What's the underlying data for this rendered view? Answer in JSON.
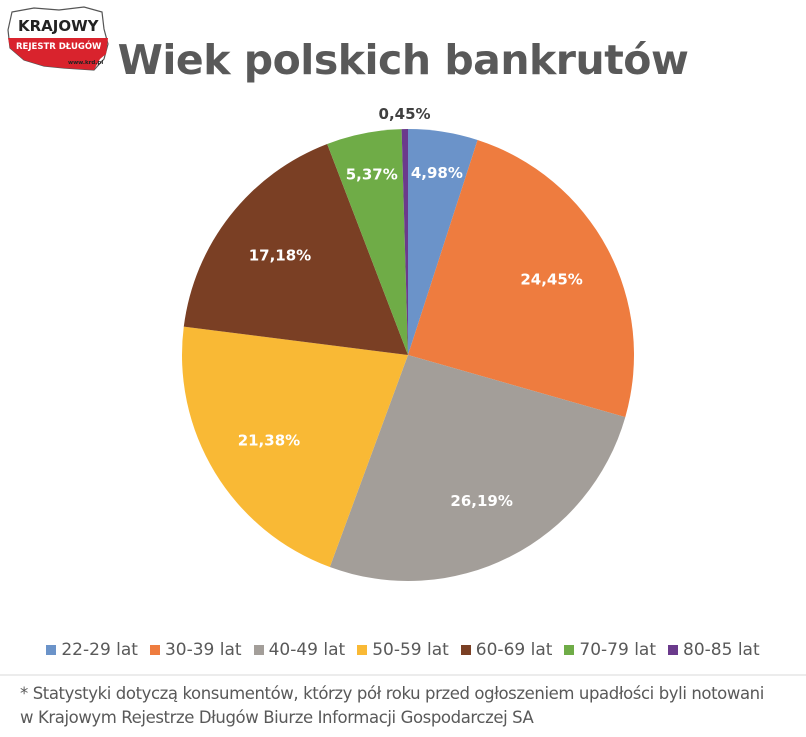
{
  "logo": {
    "line1": "KRAJOWY",
    "line2": "REJESTR DŁUGÓW",
    "url": "www.krd.pl",
    "brand_color": "#d9232d"
  },
  "title": "Wiek polskich bankrutów",
  "legend": [
    {
      "label": "22-29 lat",
      "color": "#6b93c9"
    },
    {
      "label": "30-39 lat",
      "color": "#ee7c3f"
    },
    {
      "label": "40-49 lat",
      "color": "#a39e99"
    },
    {
      "label": "50-59 lat",
      "color": "#f9b935"
    },
    {
      "label": "60-69 lat",
      "color": "#7a3f24"
    },
    {
      "label": "70-79 lat",
      "color": "#6fac47"
    },
    {
      "label": "80-85 lat",
      "color": "#6b3a8c"
    }
  ],
  "footnote": {
    "line1": "* Statystyki dotyczą konsumentów, którzy pół roku przed ogłoszeniem upadłości byli notowani",
    "line2": "w Krajowym Rejestrze Długów Biurze Informacji Gospodarczej SA"
  },
  "chart_data": {
    "type": "pie",
    "title": "Wiek polskich bankrutów",
    "categories": [
      "22-29 lat",
      "30-39 lat",
      "40-49 lat",
      "50-59 lat",
      "60-69 lat",
      "70-79 lat",
      "80-85 lat"
    ],
    "values": [
      4.98,
      24.45,
      26.19,
      21.38,
      17.18,
      5.37,
      0.45
    ],
    "labels": [
      "4,98%",
      "24,45%",
      "26,19%",
      "21,38%",
      "17,18%",
      "5,37%",
      "0,45%"
    ],
    "colors": [
      "#6b93c9",
      "#ee7c3f",
      "#a39e99",
      "#f9b935",
      "#7a3f24",
      "#6fac47",
      "#6b3a8c"
    ],
    "start_angle": "12 o'clock",
    "direction": "clockwise",
    "legend_position": "bottom",
    "unit": "%"
  }
}
